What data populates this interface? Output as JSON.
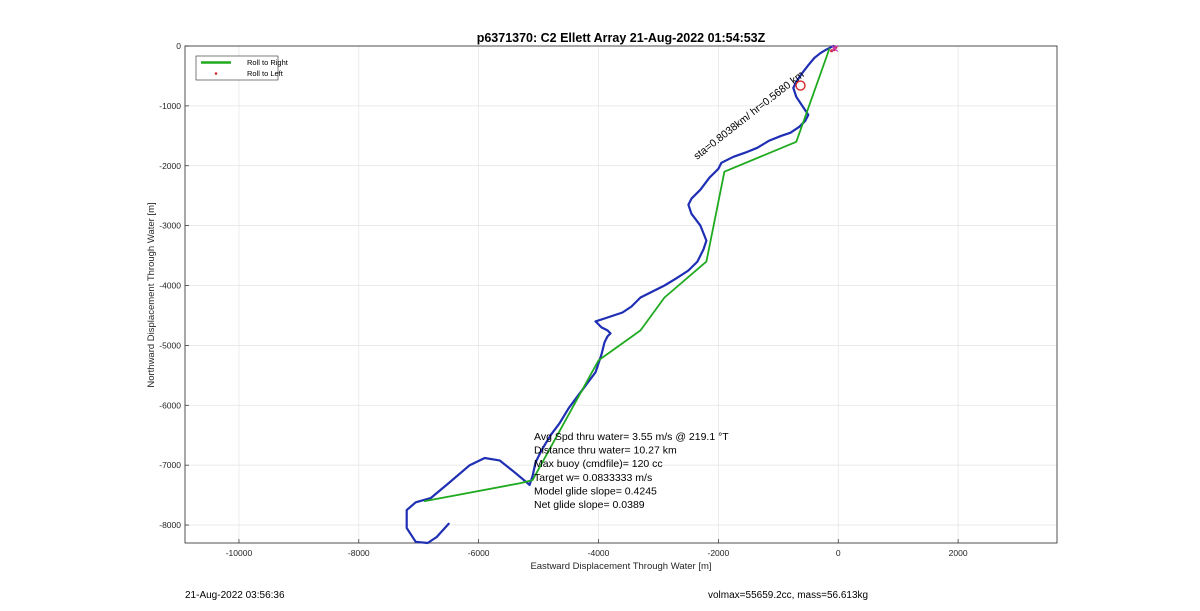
{
  "chart_data": {
    "type": "line",
    "title": "p6371370: C2 Ellett Array 21-Aug-2022 01:54:53Z",
    "xlabel": "Eastward Displacement Through Water [m]",
    "ylabel": "Northward Displacement Through Water [m]",
    "xlim": [
      -10900,
      3650
    ],
    "ylim": [
      -8300,
      0
    ],
    "xticks": [
      -10000,
      -8000,
      -6000,
      -4000,
      -2000,
      0,
      2000
    ],
    "yticks": [
      0,
      -1000,
      -2000,
      -3000,
      -4000,
      -5000,
      -6000,
      -7000,
      -8000
    ],
    "grid": true,
    "legend_position": "top-left",
    "legend": [
      {
        "label": "Roll to Right",
        "color": "#1faa1f",
        "marker": "line"
      },
      {
        "label": "Roll to Left",
        "color": "#d62728",
        "marker": "dot"
      }
    ],
    "series": [
      {
        "color": "#1f2fb4",
        "x": [
          -6500,
          -6700,
          -6850,
          -7050,
          -7200,
          -7200,
          -7050,
          -6800,
          -6500,
          -6150,
          -5900,
          -5650,
          -5400,
          -5150,
          -5100,
          -5050,
          -4950,
          -4800,
          -4650,
          -4500,
          -4350,
          -4200,
          -4050,
          -4000,
          -3950,
          -3900,
          -3850,
          -3800,
          -3850,
          -3950,
          -4050,
          -3900,
          -3750,
          -3600,
          -3450,
          -3300,
          -3100,
          -2900,
          -2700,
          -2500,
          -2350,
          -2250,
          -2200,
          -2300,
          -2450,
          -2500,
          -2450,
          -2300,
          -2150,
          -2000,
          -1950,
          -1850,
          -1750,
          -1550,
          -1350,
          -1150,
          -950,
          -800,
          -650,
          -550,
          -500,
          -600,
          -700,
          -750,
          -700,
          -600,
          -500,
          -400,
          -300,
          -200,
          -120,
          -80
        ],
        "y": [
          -7980,
          -8200,
          -8300,
          -8280,
          -8050,
          -7750,
          -7620,
          -7550,
          -7300,
          -7000,
          -6880,
          -6920,
          -7120,
          -7330,
          -7180,
          -6950,
          -6750,
          -6500,
          -6300,
          -6050,
          -5850,
          -5650,
          -5450,
          -5300,
          -5150,
          -4950,
          -4850,
          -4800,
          -4750,
          -4700,
          -4600,
          -4550,
          -4500,
          -4450,
          -4350,
          -4200,
          -4100,
          -4000,
          -3880,
          -3750,
          -3600,
          -3400,
          -3250,
          -3000,
          -2800,
          -2650,
          -2550,
          -2400,
          -2200,
          -2050,
          -1950,
          -1900,
          -1850,
          -1780,
          -1700,
          -1580,
          -1500,
          -1450,
          -1350,
          -1250,
          -1150,
          -1000,
          -850,
          -700,
          -600,
          -450,
          -320,
          -200,
          -120,
          -60,
          -20,
          0
        ]
      },
      {
        "color": "#1faa1f",
        "x": [
          -6900,
          -5300,
          -5100,
          -4000,
          -3300,
          -2900,
          -2200,
          -1900,
          -700,
          -150
        ],
        "y": [
          -7600,
          -7300,
          -7250,
          -5250,
          -4750,
          -4200,
          -3600,
          -2100,
          -1600,
          -50
        ]
      }
    ],
    "roll_left_points": [
      {
        "x": -40,
        "y": -20
      },
      {
        "x": -70,
        "y": -60
      },
      {
        "x": -110,
        "y": -80
      }
    ],
    "start_marker": {
      "x": -630,
      "y": -660,
      "color": "#d62728"
    },
    "annotations": {
      "diagonal_text": "sta=0.8038km/ hr=0.5680 km",
      "stats": [
        "Avg Spd thru water=  3.55 m/s @ 219.1 °T",
        "Distance thru water= 10.27 km",
        "Max buoy (cmdfile)= 120 cc",
        "Target w= 0.0833333 m/s",
        "Model glide slope= 0.4245",
        "Net glide slope= 0.0389"
      ]
    }
  },
  "footer": {
    "left": "21-Aug-2022 03:56:36",
    "right": "volmax=55659.2cc, mass=56.613kg"
  }
}
